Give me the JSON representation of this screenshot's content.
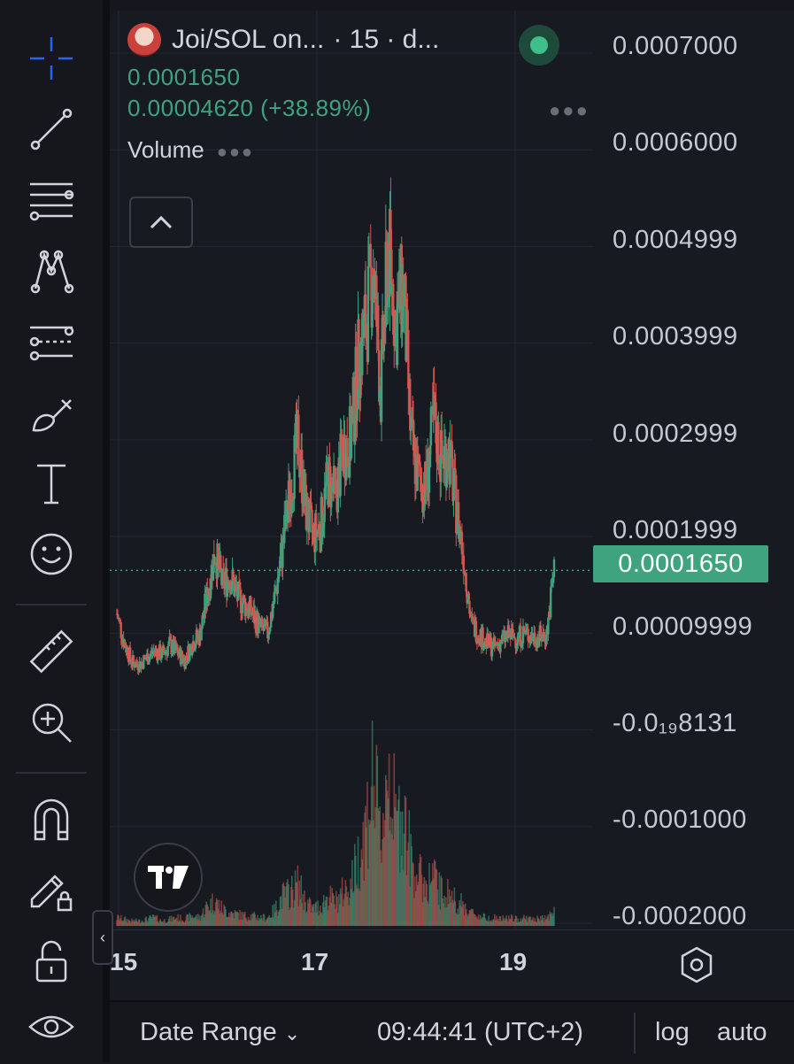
{
  "legend": {
    "symbol": "Joi/SOL on...",
    "interval": "· 15 · d...",
    "price": "0.0001650",
    "change": "0.00004620 (+38.89%)",
    "volume_label": "Volume"
  },
  "price_axis": {
    "labels": [
      "0.0007000",
      "0.0006000",
      "0.0004999",
      "0.0003999",
      "0.0002999",
      "0.0001999",
      "0.00009999",
      "-0.0₁₉8131",
      "-0.0001000",
      "-0.0002000"
    ],
    "current_price": "0.0001650"
  },
  "time_axis": {
    "labels": [
      "15",
      "17",
      "19"
    ]
  },
  "bottom_bar": {
    "date_range": "Date Range",
    "clock": "09:44:41 (UTC+2)",
    "log": "log",
    "auto": "auto"
  },
  "colors": {
    "up": "#3fa37f",
    "down": "#d9534f",
    "price_line": "#3fa37f",
    "accent_crosshair": "#2962ff"
  },
  "icons": [
    "crosshair-icon",
    "trend-line-icon",
    "fib-retracement-icon",
    "pattern-icon",
    "projection-icon",
    "brush-icon",
    "text-icon",
    "emoji-icon",
    "ruler-icon",
    "zoom-in-icon",
    "magnet-icon",
    "lock-drawing-icon",
    "unlock-icon",
    "eye-icon",
    "settings-icon",
    "tradingview-logo"
  ],
  "chart_data": {
    "type": "candlestick",
    "title": "",
    "x_ticks": [
      "15",
      "17",
      "19"
    ],
    "ylim": [
      -0.0002,
      0.0007
    ],
    "close_series": [
      0.00012,
      9e-05,
      7e-05,
      6.8e-05,
      7.5e-05,
      8.2e-05,
      7.8e-05,
      8.8e-05,
      8e-05,
      7.2e-05,
      9e-05,
      9.8e-05,
      0.00014,
      0.000185,
      0.00015,
      0.00016,
      0.000138,
      0.00013,
      0.00012,
      0.000105,
      0.0001,
      0.00014,
      0.00019,
      0.00025,
      0.0003,
      0.00023,
      0.0002,
      0.00021,
      0.00026,
      0.00024,
      0.00029,
      0.0003,
      0.00038,
      0.00042,
      0.00048,
      0.00035,
      0.0005,
      0.00042,
      0.00046,
      0.0003,
      0.00026,
      0.00025,
      0.00032,
      0.00028,
      0.00029,
      0.00023,
      0.00018,
      0.00011,
      0.0001,
      9e-05,
      8.5e-05,
      9.2e-05,
      9.8e-05,
      9.5e-05,
      0.0001,
      9.7e-05,
      9.6e-05,
      9.9e-05,
      0.000165
    ],
    "volume_relative": [
      0.05,
      0.04,
      0.03,
      0.03,
      0.04,
      0.05,
      0.03,
      0.04,
      0.05,
      0.04,
      0.06,
      0.05,
      0.12,
      0.15,
      0.1,
      0.08,
      0.07,
      0.06,
      0.06,
      0.05,
      0.05,
      0.1,
      0.18,
      0.2,
      0.25,
      0.15,
      0.1,
      0.12,
      0.18,
      0.14,
      0.2,
      0.25,
      0.4,
      0.6,
      0.9,
      0.5,
      1.0,
      0.6,
      0.7,
      0.4,
      0.3,
      0.25,
      0.3,
      0.2,
      0.2,
      0.15,
      0.12,
      0.08,
      0.06,
      0.05,
      0.05,
      0.04,
      0.05,
      0.04,
      0.05,
      0.04,
      0.04,
      0.05,
      0.08
    ]
  }
}
